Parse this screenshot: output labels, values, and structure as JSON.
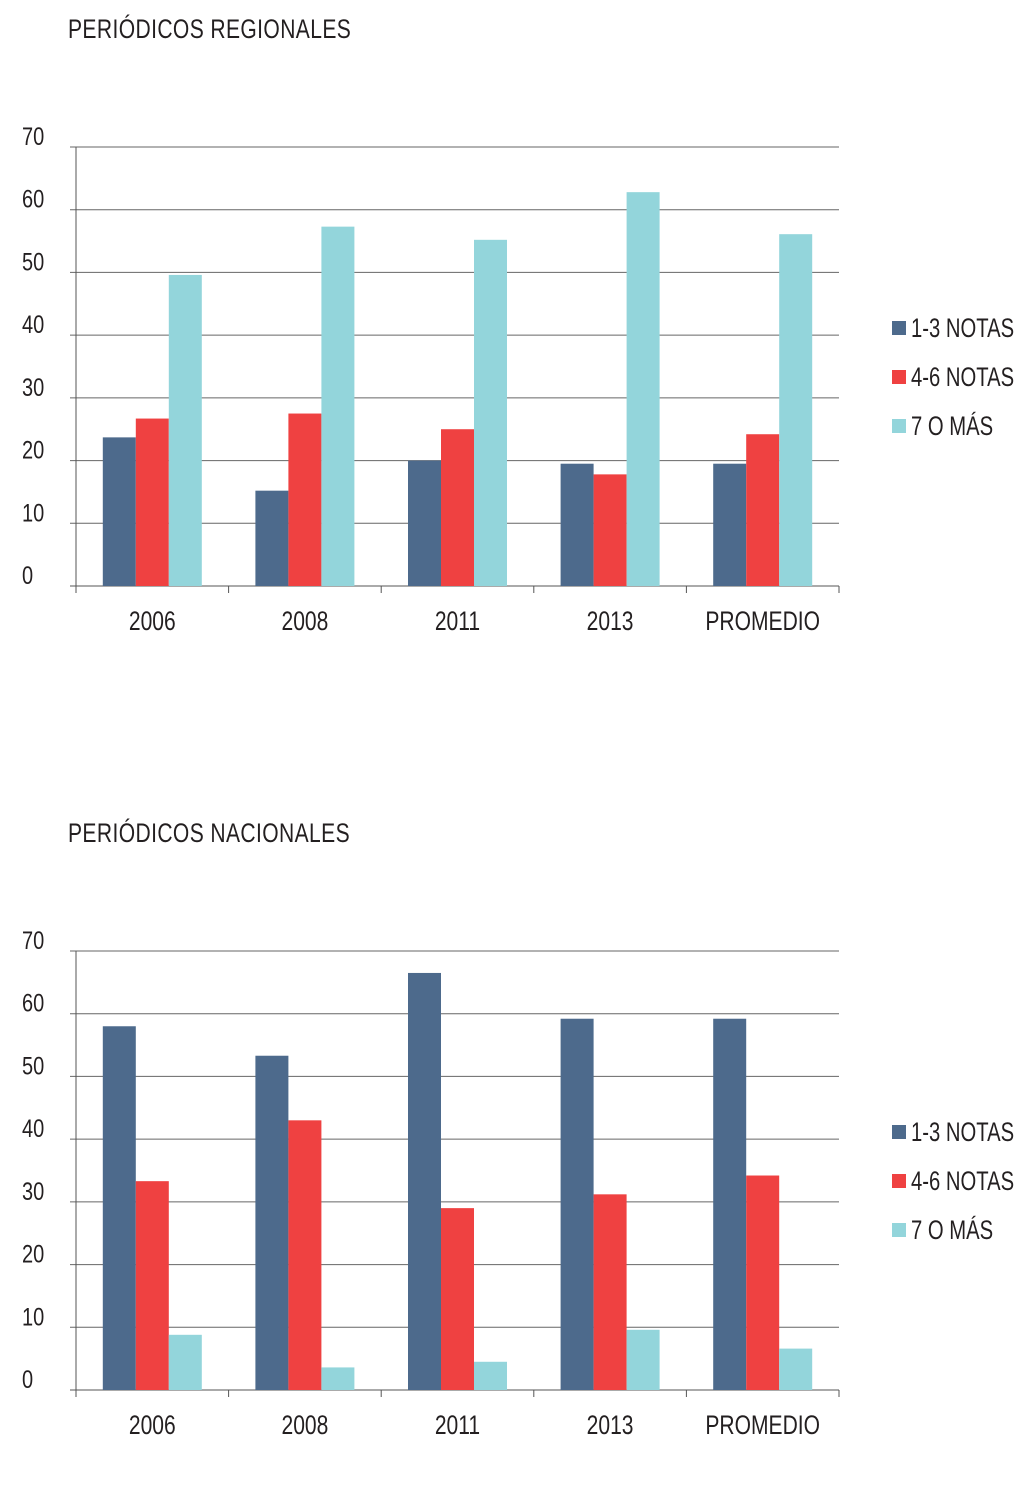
{
  "colors": {
    "series1": "#4d6a8c",
    "series2": "#ef4141",
    "series3": "#93d5db",
    "grid": "#666666"
  },
  "chart_data": [
    {
      "type": "bar",
      "title": "PERIÓDICOS REGIONALES",
      "categories": [
        "2006",
        "2008",
        "2011",
        "2013",
        "PROMEDIO"
      ],
      "ylim": [
        0,
        70
      ],
      "yticks": [
        0,
        10,
        20,
        30,
        40,
        50,
        60,
        70
      ],
      "grid": true,
      "legend_position": "right",
      "series": [
        {
          "name": "1-3 NOTAS",
          "values": [
            23.7,
            15.2,
            20.0,
            19.5,
            19.5
          ]
        },
        {
          "name": "4-6 NOTAS",
          "values": [
            26.7,
            27.5,
            25.0,
            17.8,
            24.2
          ]
        },
        {
          "name": "7 O MÁS",
          "values": [
            49.6,
            57.3,
            55.2,
            62.8,
            56.1
          ]
        }
      ]
    },
    {
      "type": "bar",
      "title": "PERIÓDICOS NACIONALES",
      "categories": [
        "2006",
        "2008",
        "2011",
        "2013",
        "PROMEDIO"
      ],
      "ylim": [
        0,
        70
      ],
      "yticks": [
        0,
        10,
        20,
        30,
        40,
        50,
        60,
        70
      ],
      "grid": true,
      "legend_position": "right",
      "series": [
        {
          "name": "1-3 NOTAS",
          "values": [
            58.0,
            53.3,
            66.5,
            59.2,
            59.2
          ]
        },
        {
          "name": "4-6 NOTAS",
          "values": [
            33.3,
            43.0,
            29.0,
            31.2,
            34.2
          ]
        },
        {
          "name": "7 O MÁS",
          "values": [
            8.8,
            3.6,
            4.5,
            9.6,
            6.6
          ]
        }
      ]
    }
  ]
}
